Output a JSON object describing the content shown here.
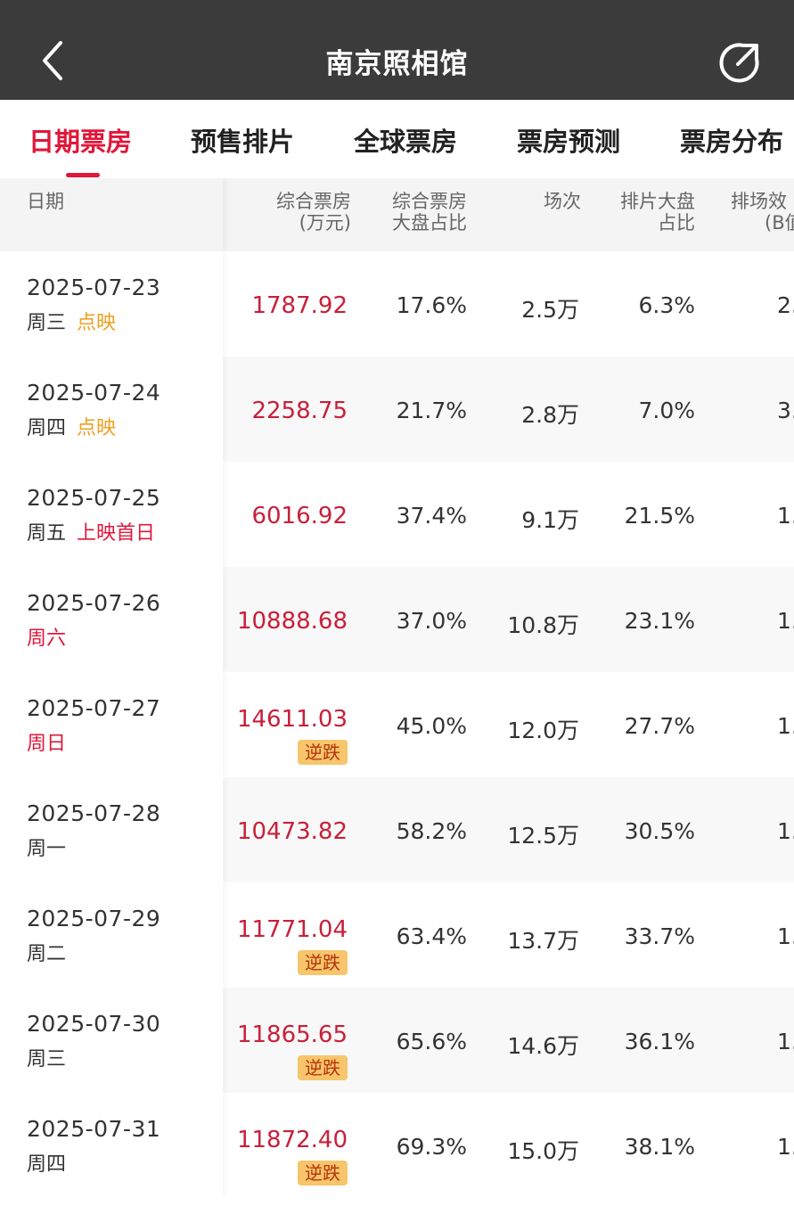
{
  "header": {
    "title": "南京照相馆"
  },
  "tabs": [
    {
      "label": "日期票房",
      "active": true
    },
    {
      "label": "预售排片",
      "active": false
    },
    {
      "label": "全球票房",
      "active": false
    },
    {
      "label": "票房预测",
      "active": false
    },
    {
      "label": "票房分布",
      "active": false
    }
  ],
  "columns": {
    "date": "日期",
    "box_office": "综合票房\n(万元)",
    "box_office_share": "综合票房\n大盘占比",
    "screenings": "场次",
    "screening_share": "排片大盘\n占比",
    "efficiency": "排场效"
  },
  "columns_partial": {
    "efficiency_sub": "(B值"
  },
  "rows": [
    {
      "date": "2025-07-23",
      "day": "周三",
      "tag": "点映",
      "box_office": "1787.92",
      "share": "17.6%",
      "screenings": "2.5万",
      "screening_share": "6.3%",
      "efficiency": "2."
    },
    {
      "date": "2025-07-24",
      "day": "周四",
      "tag": "点映",
      "box_office": "2258.75",
      "share": "21.7%",
      "screenings": "2.8万",
      "screening_share": "7.0%",
      "efficiency": "3."
    },
    {
      "date": "2025-07-25",
      "day": "周五",
      "tag": "上映首日",
      "box_office": "6016.92",
      "share": "37.4%",
      "screenings": "9.1万",
      "screening_share": "21.5%",
      "efficiency": "1."
    },
    {
      "date": "2025-07-26",
      "day": "周六",
      "tag": "",
      "box_office": "10888.68",
      "share": "37.0%",
      "screenings": "10.8万",
      "screening_share": "23.1%",
      "efficiency": "1."
    },
    {
      "date": "2025-07-27",
      "day": "周日",
      "tag": "",
      "box_office": "14611.03",
      "badge": "逆跌",
      "share": "45.0%",
      "screenings": "12.0万",
      "screening_share": "27.7%",
      "efficiency": "1."
    },
    {
      "date": "2025-07-28",
      "day": "周一",
      "tag": "",
      "box_office": "10473.82",
      "share": "58.2%",
      "screenings": "12.5万",
      "screening_share": "30.5%",
      "efficiency": "1."
    },
    {
      "date": "2025-07-29",
      "day": "周二",
      "tag": "",
      "box_office": "11771.04",
      "badge": "逆跌",
      "share": "63.4%",
      "screenings": "13.7万",
      "screening_share": "33.7%",
      "efficiency": "1."
    },
    {
      "date": "2025-07-30",
      "day": "周三",
      "tag": "",
      "box_office": "11865.65",
      "badge": "逆跌",
      "share": "65.6%",
      "screenings": "14.6万",
      "screening_share": "36.1%",
      "efficiency": "1."
    },
    {
      "date": "2025-07-31",
      "day": "周四",
      "tag": "",
      "box_office": "11872.40",
      "badge": "逆跌",
      "share": "69.3%",
      "screenings": "15.0万",
      "screening_share": "38.1%",
      "efficiency": "1."
    }
  ],
  "colors": {
    "accent": "#e0173a",
    "topbar": "#3b3b3b",
    "badge_bg": "#f7c56b",
    "preview_tag": "#f0a020"
  },
  "icons": {
    "back": "chevron-left-icon",
    "share": "share-icon"
  }
}
